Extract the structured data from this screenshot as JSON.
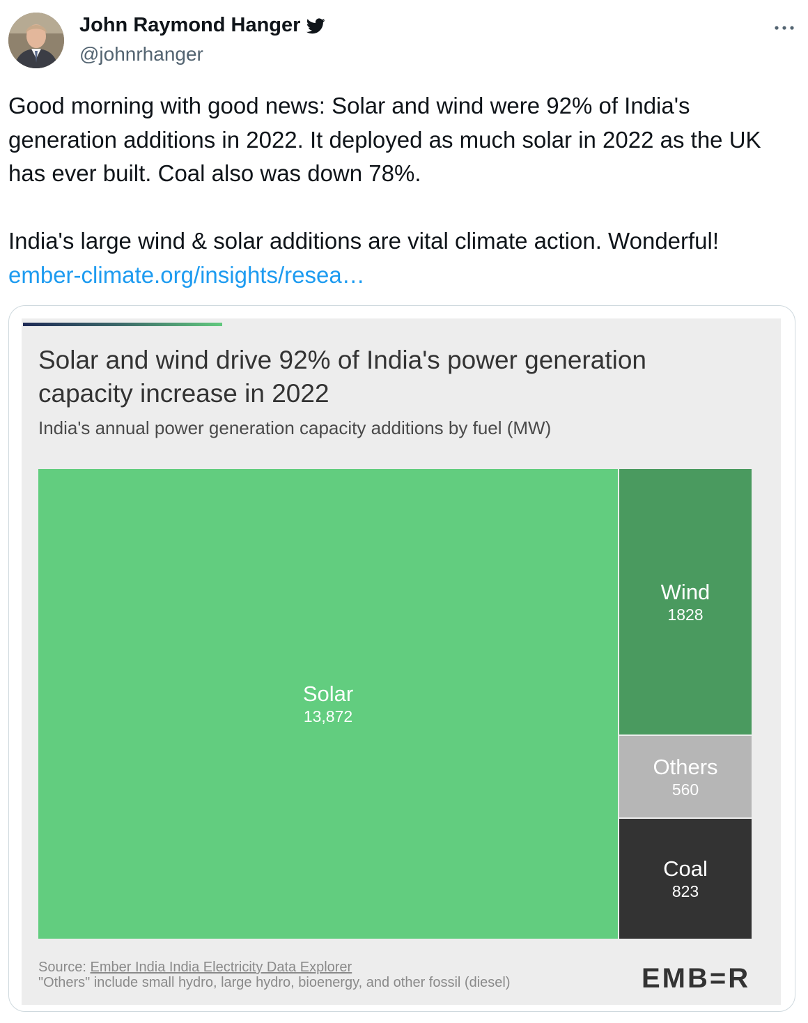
{
  "author": {
    "name": "John Raymond Hanger",
    "handle": "@johnrhanger",
    "verified_icon": "twitter-bird-icon"
  },
  "tweet": {
    "paragraph1": "Good morning with good news: Solar and wind were 92% of India's generation additions in 2022. It deployed as much solar in 2022 as the UK has ever built. Coal also was down 78%.",
    "paragraph2": "India's large wind & solar additions are vital climate action. Wonderful!",
    "link_text": "ember-climate.org/insights/resea…"
  },
  "chart": {
    "title": "Solar and wind drive 92% of India's power generation capacity increase in 2022",
    "subtitle": "India's annual power generation capacity additions by fuel (MW)",
    "source_prefix": "Source: ",
    "source_link": "Ember India India Electricity Data Explorer",
    "note": "\"Others\" include small hydro, large hydro, bioenergy, and other fossil (diesel)",
    "logo": "EMB=R"
  },
  "chart_data": {
    "type": "treemap",
    "title": "Solar and wind drive 92% of India's power generation capacity increase in 2022",
    "subtitle": "India's annual power generation capacity additions by fuel (MW)",
    "unit": "MW",
    "categories": [
      "Solar",
      "Wind",
      "Others",
      "Coal"
    ],
    "values": [
      13872,
      1828,
      560,
      823
    ],
    "value_labels": [
      "13,872",
      "1828",
      "560",
      "823"
    ],
    "colors": [
      "#62cd7f",
      "#4a9a5f",
      "#b6b6b6",
      "#333333"
    ]
  },
  "colors": {
    "link": "#1d9bf0",
    "handle": "#536471",
    "card_border": "#cfd9de"
  }
}
